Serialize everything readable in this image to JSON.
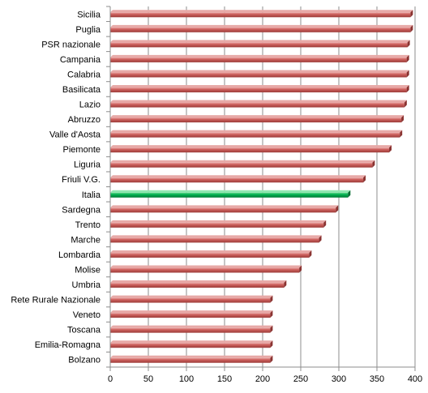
{
  "chart_data": {
    "type": "bar",
    "orientation": "horizontal",
    "categories": [
      "Sicilia",
      "Puglia",
      "PSR nazionale",
      "Campania",
      "Calabria",
      "Basilicata",
      "Lazio",
      "Abruzzo",
      "Valle d'Aosta",
      "Piemonte",
      "Liguria",
      "Friuli V.G.",
      "Italia",
      "Sardegna ",
      "Trento",
      "Marche",
      "Lombardia",
      "Molise",
      "Umbria",
      "Rete Rurale Nazionale",
      "Veneto",
      "Toscana",
      "Emilia-Romagna",
      "Bolzano"
    ],
    "values": [
      394,
      394,
      390,
      389,
      389,
      389,
      386,
      382,
      380,
      366,
      344,
      332,
      312,
      296,
      280,
      274,
      261,
      248,
      228,
      210,
      210,
      210,
      210,
      210
    ],
    "highlight_category": "Italia",
    "colors": {
      "bar": "#c0504d",
      "highlight": "#00b050"
    },
    "xlim": [
      0,
      400
    ],
    "xticks": [
      0,
      50,
      100,
      150,
      200,
      250,
      300,
      350,
      400
    ],
    "grid": "vertical",
    "title": "",
    "xlabel": "",
    "ylabel": ""
  }
}
